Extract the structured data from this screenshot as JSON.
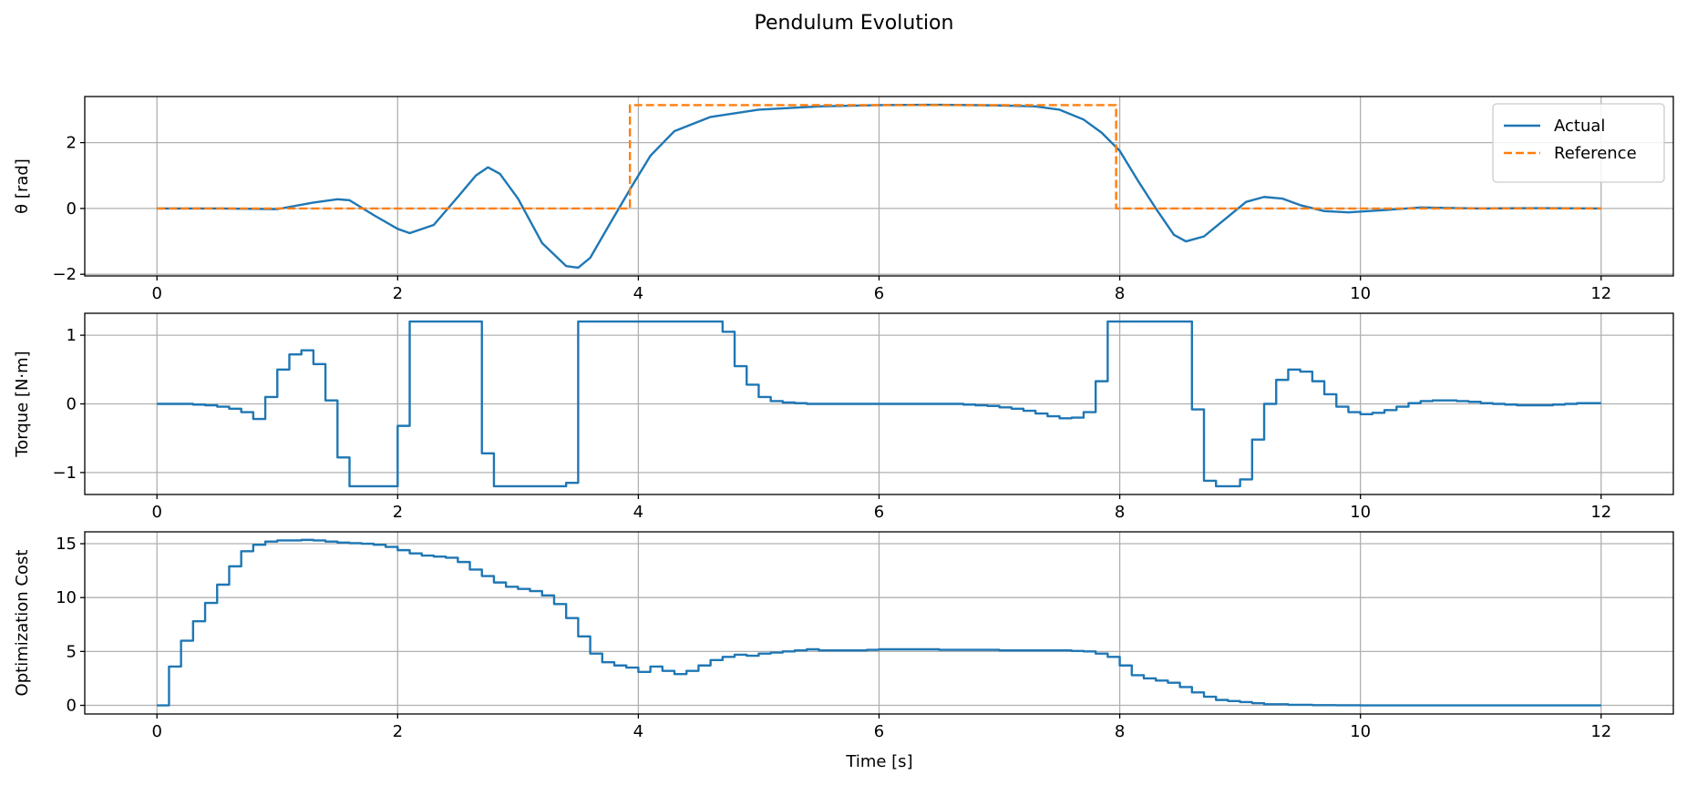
{
  "figure": {
    "title": "Pendulum Evolution"
  },
  "chart_data": [
    {
      "type": "line",
      "ylabel": "θ [rad]",
      "xlabel": "",
      "xlim": [
        -0.6,
        12.6
      ],
      "ylim": [
        -2.05,
        3.4
      ],
      "xticks": [
        0,
        2,
        4,
        6,
        8,
        10,
        12
      ],
      "yticks": [
        -2,
        0,
        2
      ],
      "grid": true,
      "legend_position": "top-right",
      "series": [
        {
          "name": "Actual",
          "style": "solid",
          "color": "#1f77b4",
          "x": [
            0,
            0.5,
            1.0,
            1.3,
            1.5,
            1.6,
            1.8,
            2.0,
            2.1,
            2.3,
            2.5,
            2.65,
            2.75,
            2.85,
            3.0,
            3.2,
            3.4,
            3.5,
            3.6,
            3.75,
            3.95,
            4.1,
            4.3,
            4.6,
            5.0,
            5.5,
            6.0,
            6.5,
            7.0,
            7.3,
            7.5,
            7.7,
            7.85,
            8.0,
            8.15,
            8.3,
            8.45,
            8.55,
            8.7,
            8.9,
            9.05,
            9.2,
            9.35,
            9.5,
            9.7,
            9.9,
            10.2,
            10.5,
            11.0,
            11.5,
            12.0
          ],
          "y": [
            0,
            0,
            -0.02,
            0.18,
            0.28,
            0.25,
            -0.2,
            -0.62,
            -0.75,
            -0.5,
            0.35,
            1.0,
            1.25,
            1.05,
            0.3,
            -1.05,
            -1.75,
            -1.8,
            -1.5,
            -0.55,
            0.7,
            1.6,
            2.35,
            2.78,
            3.0,
            3.1,
            3.14,
            3.15,
            3.13,
            3.1,
            3.0,
            2.7,
            2.3,
            1.75,
            0.85,
            0.0,
            -0.8,
            -1.0,
            -0.85,
            -0.25,
            0.2,
            0.35,
            0.3,
            0.1,
            -0.08,
            -0.12,
            -0.05,
            0.03,
            0.0,
            0.01,
            0.0
          ]
        },
        {
          "name": "Reference",
          "style": "dashed",
          "color": "#ff7f0e",
          "x": [
            0,
            3.93,
            3.93,
            7.97,
            7.97,
            12.0
          ],
          "y": [
            0,
            0,
            3.14,
            3.14,
            0,
            0
          ]
        }
      ]
    },
    {
      "type": "line",
      "ylabel": "Torque [N·m]",
      "xlabel": "",
      "xlim": [
        -0.6,
        12.6
      ],
      "ylim": [
        -1.32,
        1.32
      ],
      "xticks": [
        0,
        2,
        4,
        6,
        8,
        10,
        12
      ],
      "yticks": [
        -1,
        0,
        1
      ],
      "grid": true,
      "series": [
        {
          "name": "",
          "style": "step",
          "color": "#1f77b4",
          "x": [
            0,
            0.1,
            0.2,
            0.3,
            0.4,
            0.5,
            0.6,
            0.7,
            0.8,
            0.9,
            1.0,
            1.1,
            1.2,
            1.3,
            1.4,
            1.5,
            1.6,
            1.7,
            1.8,
            1.9,
            2.0,
            2.1,
            2.2,
            2.3,
            2.4,
            2.5,
            2.6,
            2.7,
            2.8,
            2.9,
            3.0,
            3.1,
            3.2,
            3.3,
            3.4,
            3.5,
            3.6,
            3.7,
            3.8,
            3.9,
            4.0,
            4.1,
            4.2,
            4.3,
            4.4,
            4.5,
            4.6,
            4.7,
            4.8,
            4.9,
            5.0,
            5.1,
            5.2,
            5.3,
            5.4,
            5.5,
            5.6,
            5.7,
            5.8,
            5.9,
            6.0,
            6.1,
            6.2,
            6.3,
            6.4,
            6.5,
            6.6,
            6.7,
            6.8,
            6.9,
            7.0,
            7.1,
            7.2,
            7.3,
            7.4,
            7.5,
            7.6,
            7.7,
            7.8,
            7.9,
            8.0,
            8.1,
            8.2,
            8.3,
            8.4,
            8.5,
            8.6,
            8.7,
            8.8,
            8.9,
            9.0,
            9.1,
            9.2,
            9.3,
            9.4,
            9.5,
            9.6,
            9.7,
            9.8,
            9.9,
            10.0,
            10.1,
            10.2,
            10.3,
            10.4,
            10.5,
            10.6,
            10.7,
            10.8,
            10.9,
            11.0,
            11.1,
            11.2,
            11.3,
            11.4,
            11.5,
            11.6,
            11.7,
            11.8,
            11.9,
            12.0
          ],
          "y": [
            0,
            0,
            0,
            -0.01,
            -0.02,
            -0.04,
            -0.07,
            -0.12,
            -0.22,
            0.1,
            0.5,
            0.72,
            0.78,
            0.58,
            0.05,
            -0.78,
            -1.2,
            -1.2,
            -1.2,
            -1.2,
            -0.32,
            1.2,
            1.2,
            1.2,
            1.2,
            1.2,
            1.2,
            -0.72,
            -1.2,
            -1.2,
            -1.2,
            -1.2,
            -1.2,
            -1.2,
            -1.15,
            1.2,
            1.2,
            1.2,
            1.2,
            1.2,
            1.2,
            1.2,
            1.2,
            1.2,
            1.2,
            1.2,
            1.2,
            1.05,
            0.55,
            0.28,
            0.1,
            0.04,
            0.02,
            0.01,
            0,
            0,
            0,
            0,
            0,
            0,
            0,
            0,
            0,
            0,
            0,
            0,
            0,
            -0.01,
            -0.02,
            -0.03,
            -0.05,
            -0.07,
            -0.1,
            -0.14,
            -0.18,
            -0.21,
            -0.2,
            -0.12,
            0.33,
            1.2,
            1.2,
            1.2,
            1.2,
            1.2,
            1.2,
            1.2,
            -0.08,
            -1.12,
            -1.2,
            -1.2,
            -1.1,
            -0.52,
            0.0,
            0.35,
            0.5,
            0.47,
            0.33,
            0.14,
            -0.04,
            -0.12,
            -0.15,
            -0.13,
            -0.09,
            -0.04,
            0.01,
            0.04,
            0.05,
            0.05,
            0.04,
            0.03,
            0.01,
            0,
            -0.01,
            -0.02,
            -0.02,
            -0.02,
            -0.01,
            0,
            0.01,
            0.01,
            0.01
          ]
        }
      ]
    },
    {
      "type": "line",
      "ylabel": "Optimization Cost",
      "xlabel": "Time [s]",
      "xlim": [
        -0.6,
        12.6
      ],
      "ylim": [
        -0.8,
        16.1
      ],
      "xticks": [
        0,
        2,
        4,
        6,
        8,
        10,
        12
      ],
      "yticks": [
        0,
        5,
        10,
        15
      ],
      "grid": true,
      "series": [
        {
          "name": "",
          "style": "step",
          "color": "#1f77b4",
          "x": [
            0,
            0.1,
            0.2,
            0.3,
            0.4,
            0.5,
            0.6,
            0.7,
            0.8,
            0.9,
            1.0,
            1.1,
            1.2,
            1.3,
            1.4,
            1.5,
            1.6,
            1.7,
            1.8,
            1.9,
            2.0,
            2.1,
            2.2,
            2.3,
            2.4,
            2.5,
            2.6,
            2.7,
            2.8,
            2.9,
            3.0,
            3.1,
            3.2,
            3.3,
            3.4,
            3.5,
            3.6,
            3.7,
            3.8,
            3.9,
            4.0,
            4.1,
            4.2,
            4.3,
            4.4,
            4.5,
            4.6,
            4.7,
            4.8,
            4.9,
            5.0,
            5.1,
            5.2,
            5.3,
            5.4,
            5.5,
            5.6,
            5.7,
            5.8,
            5.9,
            6.0,
            6.5,
            7.0,
            7.5,
            7.6,
            7.7,
            7.8,
            7.9,
            8.0,
            8.1,
            8.2,
            8.3,
            8.4,
            8.5,
            8.6,
            8.7,
            8.8,
            8.9,
            9.0,
            9.1,
            9.2,
            9.4,
            9.6,
            9.8,
            10.0,
            12.0
          ],
          "y": [
            0,
            3.6,
            6.0,
            7.8,
            9.5,
            11.2,
            12.9,
            14.3,
            14.9,
            15.2,
            15.3,
            15.3,
            15.35,
            15.3,
            15.2,
            15.1,
            15.05,
            15.0,
            14.9,
            14.7,
            14.4,
            14.1,
            13.9,
            13.8,
            13.7,
            13.3,
            12.6,
            12.0,
            11.4,
            11.0,
            10.8,
            10.6,
            10.2,
            9.4,
            8.1,
            6.4,
            4.8,
            4.0,
            3.7,
            3.5,
            3.1,
            3.6,
            3.2,
            2.9,
            3.2,
            3.7,
            4.2,
            4.5,
            4.7,
            4.6,
            4.8,
            4.9,
            5.0,
            5.1,
            5.2,
            5.1,
            5.1,
            5.1,
            5.1,
            5.15,
            5.2,
            5.15,
            5.1,
            5.1,
            5.05,
            5.0,
            4.8,
            4.5,
            3.7,
            2.8,
            2.5,
            2.3,
            2.1,
            1.7,
            1.2,
            0.8,
            0.5,
            0.4,
            0.3,
            0.2,
            0.1,
            0.05,
            0.02,
            0.01,
            0,
            0
          ]
        }
      ]
    }
  ]
}
